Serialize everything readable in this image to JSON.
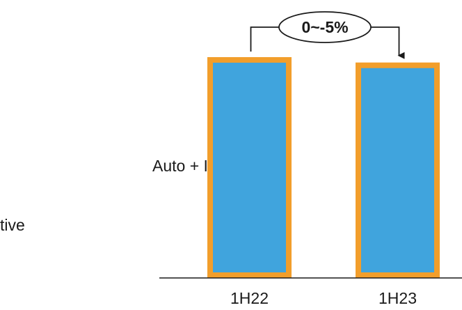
{
  "chart_data": {
    "type": "bar",
    "categories": [
      "1H22",
      "1H23"
    ],
    "series": [
      {
        "values": [
          100,
          97.5
        ]
      }
    ],
    "annotation": {
      "text": "0~-5%",
      "from": "1H22",
      "to": "1H23"
    },
    "labels": [
      "Auto + Industrial",
      "tive"
    ],
    "colors": {
      "bar_fill": "#40A4DD",
      "bar_border": "#F29E2B",
      "axis": "#1a1a1a"
    },
    "ylim": [
      0,
      100
    ],
    "grid": false
  }
}
